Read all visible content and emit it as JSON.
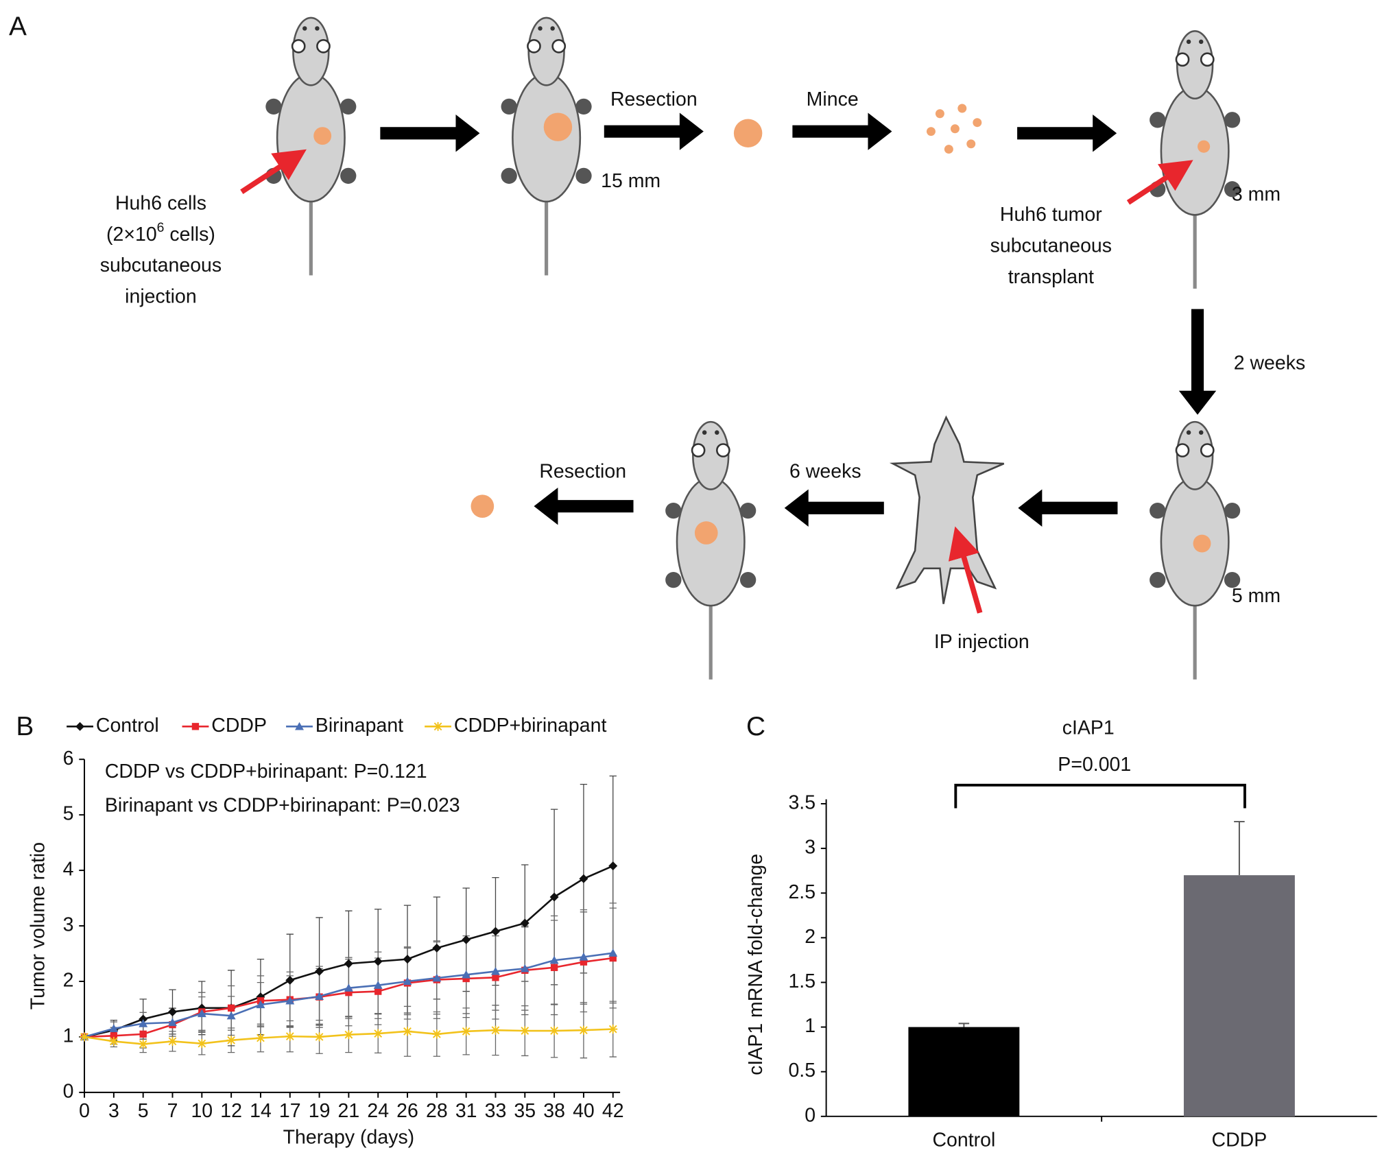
{
  "diagram": {
    "panel": "A",
    "injection": {
      "line1": "Huh6 cells",
      "line2_before": "(2×10",
      "line2_sup": "6",
      "line2_after": " cells)",
      "line3": "subcutaneous",
      "line4": "injection"
    },
    "resection_top": "Resection",
    "size_15": "15 mm",
    "mince": "Mince",
    "transplant": {
      "line1": "Huh6 tumor",
      "line2": "subcutaneous",
      "line3": "transplant"
    },
    "size_3": "3 mm",
    "two_weeks": "2 weeks",
    "size_5": "5 mm",
    "ip": "IP injection",
    "six_weeks": "6 weeks",
    "resection_bottom": "Resection"
  },
  "chart_data": [
    {
      "type": "line",
      "panel": "B",
      "x_label": "Therapy (days)",
      "y_label": "Tumor volume ratio",
      "annotations": [
        "CDDP vs CDDP+birinapant: P=0.121",
        "Birinapant vs CDDP+birinapant: P=0.023"
      ],
      "legend": "top",
      "categories": [
        0,
        3,
        5,
        7,
        10,
        12,
        14,
        17,
        19,
        21,
        24,
        26,
        28,
        31,
        33,
        35,
        38,
        40,
        42
      ],
      "ylim": [
        0,
        6
      ],
      "yticks": [
        0,
        1,
        2,
        3,
        4,
        5,
        6
      ],
      "series": [
        {
          "name": "Control",
          "color": "#111111",
          "marker": "diamond",
          "values": [
            1,
            1.12,
            1.32,
            1.45,
            1.52,
            1.52,
            1.72,
            2.02,
            2.18,
            2.32,
            2.36,
            2.4,
            2.6,
            2.75,
            2.9,
            3.05,
            3.52,
            3.85,
            4.08
          ],
          "errors": [
            0,
            0.18,
            0.36,
            0.4,
            0.48,
            0.68,
            0.68,
            0.83,
            0.97,
            0.95,
            0.94,
            0.97,
            0.92,
            0.93,
            0.97,
            1.05,
            1.58,
            1.7,
            1.62
          ]
        },
        {
          "name": "CDDP",
          "color": "#e8262d",
          "marker": "square",
          "values": [
            1,
            1.02,
            1.05,
            1.22,
            1.45,
            1.52,
            1.65,
            1.67,
            1.72,
            1.8,
            1.82,
            1.97,
            2.03,
            2.05,
            2.07,
            2.2,
            2.25,
            2.35,
            2.42
          ],
          "errors": [
            0,
            0.15,
            0.25,
            0.3,
            0.35,
            0.4,
            0.45,
            0.5,
            0.55,
            0.6,
            0.6,
            0.65,
            0.7,
            0.7,
            0.75,
            0.8,
            0.85,
            0.9,
            0.9
          ]
        },
        {
          "name": "Birinapant",
          "color": "#4a6fb5",
          "marker": "triangle",
          "values": [
            1,
            1.15,
            1.24,
            1.26,
            1.42,
            1.38,
            1.58,
            1.65,
            1.73,
            1.88,
            1.93,
            2.0,
            2.06,
            2.12,
            2.18,
            2.23,
            2.38,
            2.44,
            2.51
          ],
          "errors": [
            0,
            0.12,
            0.2,
            0.25,
            0.3,
            0.35,
            0.4,
            0.45,
            0.5,
            0.55,
            0.6,
            0.6,
            0.65,
            0.7,
            0.7,
            0.75,
            0.8,
            0.85,
            0.9
          ]
        },
        {
          "name": "CDDP+birinapant",
          "color": "#f2c21b",
          "marker": "star",
          "values": [
            1,
            0.92,
            0.87,
            0.92,
            0.88,
            0.94,
            0.98,
            1.01,
            1.0,
            1.04,
            1.06,
            1.1,
            1.05,
            1.1,
            1.12,
            1.11,
            1.11,
            1.12,
            1.14
          ],
          "errors": [
            0,
            0.1,
            0.15,
            0.18,
            0.2,
            0.22,
            0.25,
            0.28,
            0.3,
            0.32,
            0.35,
            0.45,
            0.4,
            0.42,
            0.45,
            0.45,
            0.48,
            0.5,
            0.5
          ]
        }
      ]
    },
    {
      "type": "bar",
      "panel": "C",
      "title": "cIAP1",
      "annotation": "P=0.001",
      "y_label": "cIAP1 mRNA fold-change",
      "categories": [
        "Control",
        "CDDP"
      ],
      "values": [
        1.0,
        2.7
      ],
      "errors": [
        0.04,
        0.6
      ],
      "colors": [
        "#000000",
        "#6b6a72"
      ],
      "ylim": [
        0,
        3.5
      ],
      "yticks": [
        0,
        0.5,
        1,
        1.5,
        2,
        2.5,
        3,
        3.5
      ]
    }
  ]
}
